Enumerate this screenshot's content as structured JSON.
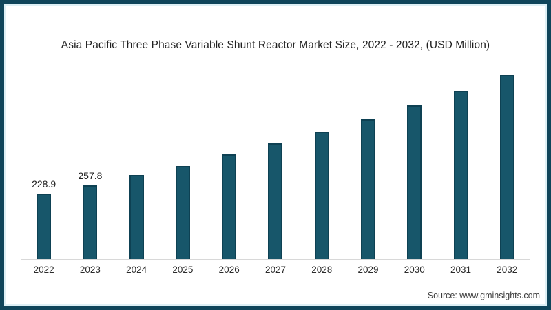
{
  "page": {
    "title": "Asia Pacific Three Phase Variable Shunt Reactor Market Size, 2022 - 2032, (USD Million)",
    "source_text": "Source: www.gminsights.com"
  },
  "colors": {
    "frame_border": "#10455a",
    "frame_inner_edge": "#def0f5",
    "bar_fill": "#17566a",
    "bar_edge": "#0e4153",
    "axis_line": "#d8d8d8",
    "title_text": "#1f1f1f",
    "value_label_text": "#1f1f1f",
    "tick_label_text": "#2a2a2a",
    "source_text": "#3d3d3d"
  },
  "chart_data": {
    "type": "bar",
    "title": "Asia Pacific Three Phase Variable Shunt Reactor Market Size, 2022 - 2032, (USD Million)",
    "unit": "USD Million",
    "xlabel": "",
    "ylabel": "",
    "categories": [
      "2022",
      "2023",
      "2024",
      "2025",
      "2026",
      "2027",
      "2028",
      "2029",
      "2030",
      "2031",
      "2032"
    ],
    "values": [
      228.9,
      257.8,
      295,
      326,
      367,
      406,
      446,
      490,
      538,
      589,
      644
    ],
    "data_labels": [
      "228.9",
      "257.8",
      "",
      "",
      "",
      "",
      "",
      "",
      "",
      "",
      ""
    ],
    "ylim": [
      0,
      700
    ],
    "grid": false,
    "legend": false,
    "source": "Source: www.gminsights.com"
  }
}
